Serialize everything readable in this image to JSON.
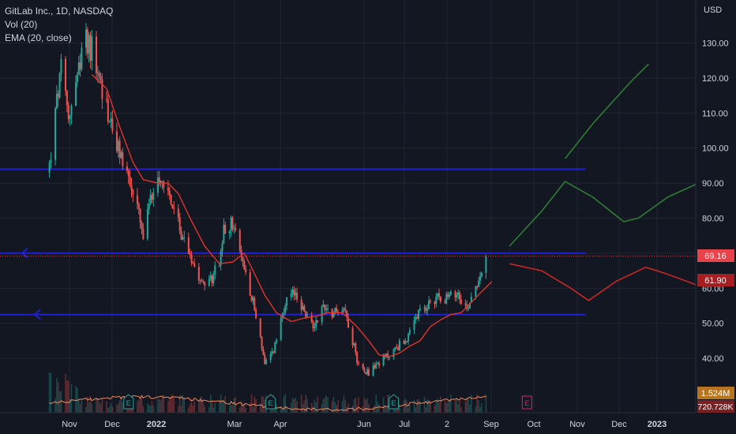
{
  "legend": {
    "symbol": "GitLab Inc., 1D, NASDAQ",
    "vol": "Vol (20)",
    "ema": "EMA (20, close)"
  },
  "currency": "USD",
  "colors": {
    "background": "#131722",
    "grid": "#222633",
    "up": "#26a69a",
    "down": "#ef5350",
    "ema": "#e0342c",
    "level_line": "#1f1fd6",
    "projection_green": "#2e7d32",
    "projection_red": "#c62828",
    "volume_avg": "#f08a5d"
  },
  "badges": {
    "last_price": "69.16",
    "ema_value": "61.90",
    "volume": "1.524M",
    "volume_avg": "720.728K"
  },
  "earnings_marker": "E",
  "chart_data": {
    "type": "candlestick",
    "title": "GitLab Inc., 1D, NASDAQ",
    "y_axis": {
      "label": "USD",
      "range": [
        30.5,
        137
      ],
      "ticks": [
        130,
        120,
        110,
        100,
        90,
        80,
        70,
        60,
        50,
        40
      ]
    },
    "x_axis": {
      "tick_labels": [
        "Nov",
        "Dec",
        "2022",
        "Mar",
        "Apr",
        "Jun",
        "Jul",
        "2",
        "Sep",
        "Oct",
        "Nov",
        "Dec",
        "2023"
      ]
    },
    "price_path": [
      [
        "2021-10-14",
        95
      ],
      [
        "2021-10-19",
        113
      ],
      [
        "2021-10-22",
        122
      ],
      [
        "2021-10-27",
        109
      ],
      [
        "2021-11-01",
        118
      ],
      [
        "2021-11-05",
        125
      ],
      [
        "2021-11-08",
        131
      ],
      [
        "2021-11-12",
        128
      ],
      [
        "2021-11-17",
        120
      ],
      [
        "2021-11-23",
        110
      ],
      [
        "2021-11-29",
        100
      ],
      [
        "2021-12-03",
        97
      ],
      [
        "2021-12-08",
        90
      ],
      [
        "2021-12-13",
        83
      ],
      [
        "2021-12-17",
        74
      ],
      [
        "2021-12-22",
        85
      ],
      [
        "2021-12-27",
        93
      ],
      [
        "2022-01-03",
        88
      ],
      [
        "2022-01-10",
        78
      ],
      [
        "2022-01-17",
        71
      ],
      [
        "2022-01-24",
        64
      ],
      [
        "2022-01-31",
        61
      ],
      [
        "2022-02-07",
        68
      ],
      [
        "2022-02-10",
        76
      ],
      [
        "2022-02-15",
        79
      ],
      [
        "2022-02-22",
        69
      ],
      [
        "2022-03-01",
        58
      ],
      [
        "2022-03-07",
        46
      ],
      [
        "2022-03-10",
        38
      ],
      [
        "2022-03-15",
        41
      ],
      [
        "2022-03-21",
        50
      ],
      [
        "2022-03-25",
        56
      ],
      [
        "2022-03-31",
        59
      ],
      [
        "2022-04-06",
        53
      ],
      [
        "2022-04-12",
        49
      ],
      [
        "2022-04-19",
        55
      ],
      [
        "2022-04-26",
        53
      ],
      [
        "2022-05-03",
        55
      ],
      [
        "2022-05-09",
        45
      ],
      [
        "2022-05-13",
        38
      ],
      [
        "2022-05-20",
        36
      ],
      [
        "2022-05-27",
        39
      ],
      [
        "2022-06-03",
        41
      ],
      [
        "2022-06-10",
        44
      ],
      [
        "2022-06-16",
        46
      ],
      [
        "2022-06-22",
        52
      ],
      [
        "2022-06-29",
        55
      ],
      [
        "2022-07-06",
        58
      ],
      [
        "2022-07-13",
        57
      ],
      [
        "2022-07-20",
        59
      ],
      [
        "2022-07-26",
        54
      ],
      [
        "2022-07-29",
        58
      ],
      [
        "2022-08-03",
        63
      ],
      [
        "2022-08-08",
        69.16
      ]
    ],
    "ema_path": [
      [
        "2021-11-12",
        121
      ],
      [
        "2021-11-22",
        117
      ],
      [
        "2021-12-01",
        106
      ],
      [
        "2021-12-10",
        96
      ],
      [
        "2021-12-17",
        91
      ],
      [
        "2021-12-27",
        90
      ],
      [
        "2022-01-03",
        90
      ],
      [
        "2022-01-10",
        87
      ],
      [
        "2022-01-18",
        80
      ],
      [
        "2022-01-28",
        72
      ],
      [
        "2022-02-07",
        67
      ],
      [
        "2022-02-16",
        67.5
      ],
      [
        "2022-02-24",
        70
      ],
      [
        "2022-03-02",
        65
      ],
      [
        "2022-03-10",
        58
      ],
      [
        "2022-03-18",
        53
      ],
      [
        "2022-03-28",
        50.5
      ],
      [
        "2022-04-06",
        51.5
      ],
      [
        "2022-04-14",
        52
      ],
      [
        "2022-04-22",
        53
      ],
      [
        "2022-05-02",
        53
      ],
      [
        "2022-05-12",
        49
      ],
      [
        "2022-05-20",
        45
      ],
      [
        "2022-05-27",
        41
      ],
      [
        "2022-06-03",
        40.5
      ],
      [
        "2022-06-10",
        41.5
      ],
      [
        "2022-06-17",
        43.5
      ],
      [
        "2022-06-24",
        45
      ],
      [
        "2022-07-01",
        49
      ],
      [
        "2022-07-08",
        51
      ],
      [
        "2022-07-15",
        52.5
      ],
      [
        "2022-07-22",
        53
      ],
      [
        "2022-07-29",
        56
      ],
      [
        "2022-08-05",
        59
      ],
      [
        "2022-08-12",
        61.9
      ]
    ],
    "horizontal_levels": [
      {
        "price": 94,
        "from": "2021-10-01",
        "to": "2022-10-15"
      },
      {
        "price": 70,
        "from": "2021-10-01",
        "to": "2022-10-15",
        "arrow": "left"
      },
      {
        "price": 52.5,
        "from": "2021-10-01",
        "to": "2022-10-15",
        "arrow": "left"
      }
    ],
    "projections": [
      {
        "color": "green",
        "points": [
          [
            "2022-10-01",
            97
          ],
          [
            "2022-10-20",
            107
          ],
          [
            "2022-11-15",
            119
          ],
          [
            "2022-11-27",
            124
          ]
        ]
      },
      {
        "color": "green",
        "points": [
          [
            "2022-08-24",
            72
          ],
          [
            "2022-09-15",
            82
          ],
          [
            "2022-10-01",
            90.5
          ],
          [
            "2022-10-20",
            86
          ],
          [
            "2022-11-10",
            79
          ],
          [
            "2022-11-20",
            80
          ],
          [
            "2022-12-10",
            86
          ],
          [
            "2022-12-31",
            90
          ]
        ]
      },
      {
        "color": "red",
        "points": [
          [
            "2022-08-24",
            67
          ],
          [
            "2022-09-15",
            65
          ],
          [
            "2022-10-05",
            60
          ],
          [
            "2022-10-17",
            56.5
          ],
          [
            "2022-11-05",
            62
          ],
          [
            "2022-11-25",
            66
          ],
          [
            "2022-12-10",
            64
          ],
          [
            "2023-01-05",
            60
          ]
        ]
      }
    ],
    "earnings_dates": [
      {
        "date": "2021-12-07",
        "reported": true
      },
      {
        "date": "2022-03-14",
        "reported": true
      },
      {
        "date": "2022-06-06",
        "reported": true
      },
      {
        "date": "2022-09-05",
        "reported": false
      }
    ]
  }
}
